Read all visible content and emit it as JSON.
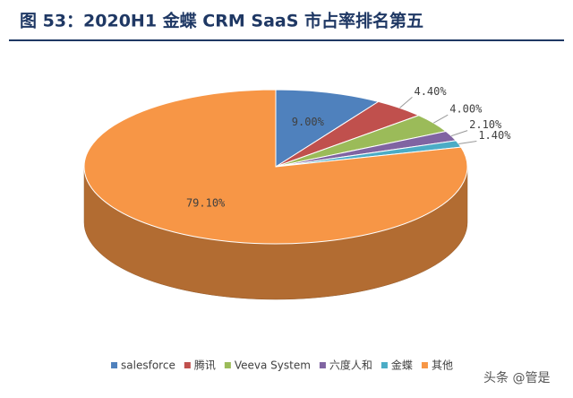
{
  "chart_data": {
    "type": "pie",
    "title": "图 53：2020H1 金蝶 CRM SaaS 市占率排名第五",
    "categories": [
      "salesforce",
      "腾讯",
      "Veeva System",
      "六度人和",
      "金蝶",
      "其他"
    ],
    "values": [
      9.0,
      4.4,
      4.0,
      2.1,
      1.4,
      79.1
    ],
    "value_labels": [
      "9.00%",
      "4.40%",
      "4.00%",
      "2.10%",
      "1.40%",
      "79.10%"
    ],
    "colors": [
      "#4f81bd",
      "#c0504d",
      "#9bbb59",
      "#8064a2",
      "#4bacc6",
      "#f79646"
    ],
    "legend": "bottom"
  },
  "watermark": "头条 @管是"
}
